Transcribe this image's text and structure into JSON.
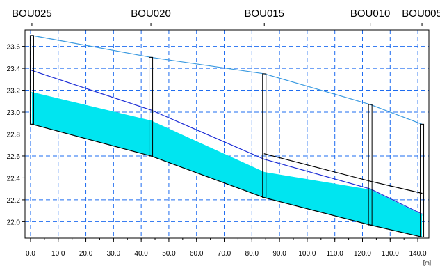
{
  "chart_data": {
    "type": "area",
    "title": "",
    "xlabel": "",
    "ylabel": "",
    "x_unit": "[m]",
    "xlim": [
      -2,
      144
    ],
    "ylim": [
      21.85,
      23.75
    ],
    "x_ticks": [
      0,
      10,
      20,
      30,
      40,
      50,
      60,
      70,
      80,
      90,
      100,
      110,
      120,
      130,
      140
    ],
    "x_tick_labels": [
      "0.0",
      "10.0",
      "20.0",
      "30.0",
      "40.0",
      "50.0",
      "60.0",
      "70.0",
      "80.0",
      "90.0",
      "100.0",
      "110.0",
      "120.0",
      "130.0",
      "140.0"
    ],
    "y_ticks": [
      22.0,
      22.2,
      22.4,
      22.6,
      22.8,
      23.0,
      23.2,
      23.4,
      23.6
    ],
    "y_tick_labels": [
      "22.0",
      "22.2",
      "22.4",
      "22.6",
      "22.8",
      "23.0",
      "23.2",
      "23.4",
      "23.6"
    ],
    "grid": true,
    "nodes": [
      {
        "label": "BOU025",
        "x": 0.5,
        "ground": 23.7,
        "invert": 22.89
      },
      {
        "label": "BOU020",
        "x": 43.5,
        "ground": 23.5,
        "invert": 22.6
      },
      {
        "label": "BOU015",
        "x": 84.5,
        "ground": 23.35,
        "invert": 22.22
      },
      {
        "label": "BOU010",
        "x": 122.8,
        "ground": 23.07,
        "invert": 21.97
      },
      {
        "label": "BOU005",
        "x": 141.5,
        "ground": 22.89,
        "invert": 21.86
      }
    ],
    "series": [
      {
        "color": "#3a9ae0",
        "x": [
          0.5,
          43.5,
          84.5,
          122.8,
          141.5
        ],
        "values": [
          23.7,
          23.5,
          23.35,
          23.07,
          22.89
        ]
      },
      {
        "color": "#1f2fd6",
        "x": [
          0.5,
          43.5,
          84.5,
          122.8,
          141.5
        ],
        "values": [
          23.38,
          23.02,
          22.57,
          22.3,
          22.07
        ]
      },
      {
        "color": "#00e5f0",
        "x": [
          0.5,
          43.5,
          84.5,
          122.8,
          141.5
        ],
        "values": [
          23.18,
          22.92,
          22.45,
          22.29,
          22.06
        ]
      },
      {
        "color": "#000000",
        "x": [
          0.5,
          43.5,
          84.5,
          122.8,
          141.5
        ],
        "values": [
          22.89,
          22.6,
          22.22,
          21.97,
          21.86
        ]
      },
      {
        "color": "#000000",
        "x": [
          84.5,
          122.8,
          141.5
        ],
        "values": [
          22.62,
          22.37,
          22.26
        ]
      }
    ]
  }
}
